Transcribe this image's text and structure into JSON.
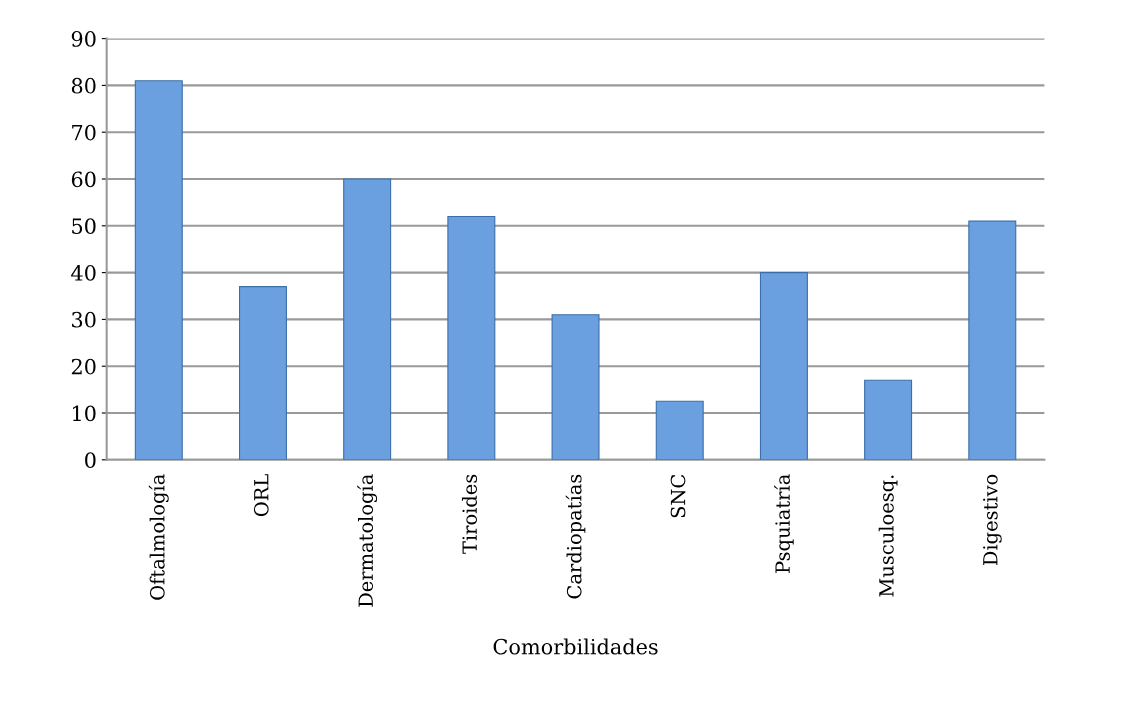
{
  "chart_data": {
    "type": "bar",
    "xlabel": "Comorbilidades",
    "categories": [
      "Oftalmología",
      "ORL",
      "Dermatología",
      "Tiroides",
      "Cardiopatías",
      "SNC",
      "Psquiatría",
      "Musculoesq.",
      "Digestivo"
    ],
    "values": [
      81,
      37,
      60,
      52,
      31,
      12.5,
      40,
      17,
      51
    ],
    "color": "#6a9fe0",
    "ylim": [
      0,
      90
    ],
    "yticks": [
      0,
      10,
      20,
      30,
      40,
      50,
      60,
      70,
      80,
      90
    ],
    "grid": "y"
  }
}
